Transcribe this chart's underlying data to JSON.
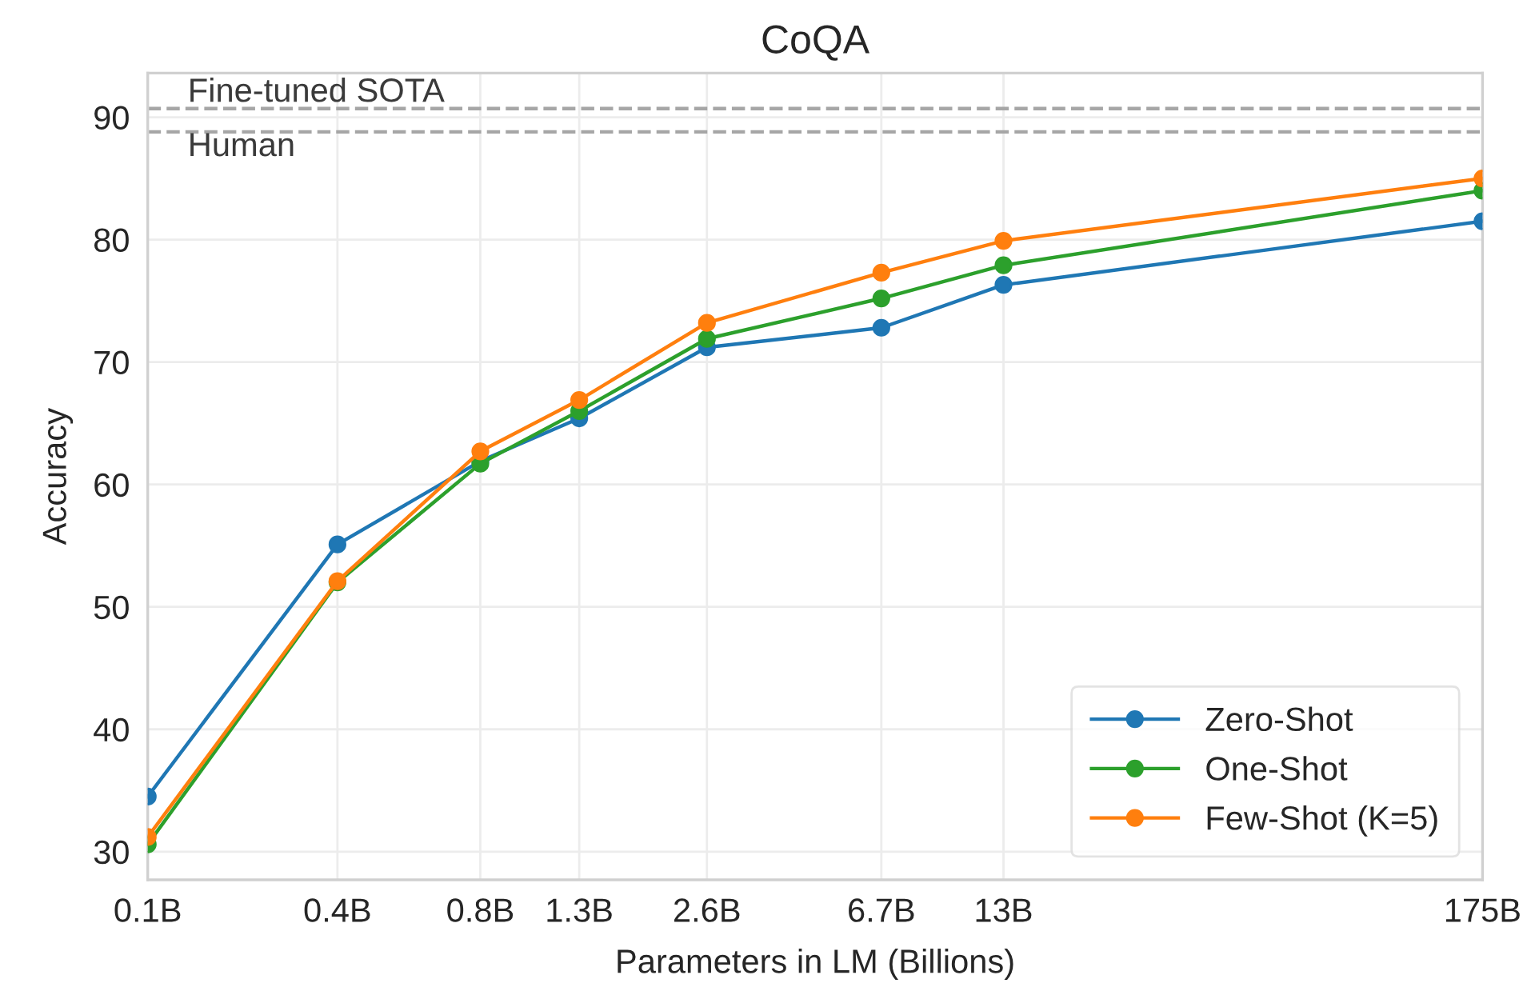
{
  "chart_data": {
    "type": "line",
    "title": "CoQA",
    "xlabel": "Parameters in LM (Billions)",
    "ylabel": "Accuracy",
    "log": "x",
    "grid": true,
    "legend": "bottom right",
    "marker": "circle",
    "line_style": "solid",
    "xlim": [
      0.125,
      175
    ],
    "xticks": [
      {
        "value": 0.125,
        "label": "0.1B"
      },
      {
        "value": 0.35,
        "label": "0.4B"
      },
      {
        "value": 0.76,
        "label": "0.8B"
      },
      {
        "value": 1.3,
        "label": "1.3B"
      },
      {
        "value": 2.6,
        "label": "2.6B"
      },
      {
        "value": 6.7,
        "label": "6.7B"
      },
      {
        "value": 13,
        "label": "13B"
      },
      {
        "value": 175,
        "label": "175B"
      }
    ],
    "ylim": [
      27.7,
      93.6
    ],
    "yticks": [
      30,
      40,
      50,
      60,
      70,
      80,
      90
    ],
    "x": [
      0.125,
      0.35,
      0.76,
      1.3,
      2.6,
      6.7,
      13,
      175
    ],
    "series": [
      {
        "name": "Zero-Shot",
        "color": "#1f77b4",
        "values": [
          34.5,
          55.1,
          61.9,
          65.4,
          71.2,
          72.8,
          76.3,
          81.5
        ]
      },
      {
        "name": "One-Shot",
        "color": "#2ca02c",
        "values": [
          30.6,
          52.0,
          61.7,
          66.0,
          71.9,
          75.2,
          77.9,
          84.0
        ]
      },
      {
        "name": "Few-Shot (K=5)",
        "color": "#ff7f0e",
        "values": [
          31.2,
          52.1,
          62.7,
          66.9,
          73.2,
          77.3,
          79.9,
          85.0
        ]
      }
    ],
    "ref_lines": [
      {
        "axis": "y",
        "value": 90.7,
        "label": "Fine-tuned SOTA",
        "color": "#a6a6a6",
        "line_style": "dashed"
      },
      {
        "axis": "y",
        "value": 88.8,
        "label": "Human",
        "color": "#a6a6a6",
        "line_style": "dashed"
      }
    ]
  }
}
